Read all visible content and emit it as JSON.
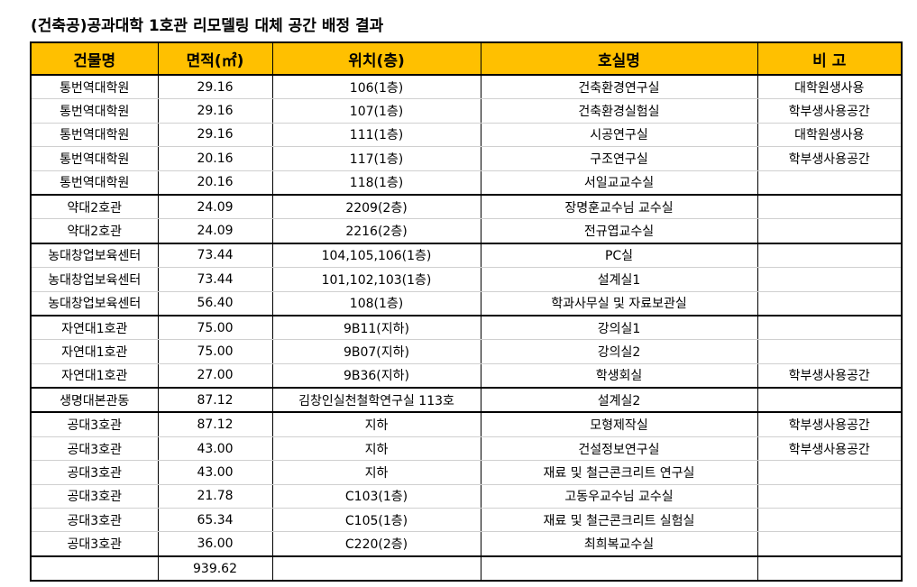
{
  "title": "(건축공)공과대학 1호관 리모델링 대체 공간 배정 결과",
  "headers": [
    "건물명",
    "면적(㎡)",
    "위치(층)",
    "호실명",
    "비  고"
  ],
  "rows": [
    {
      "building": "통번역대학원",
      "area": "29.16",
      "location": "106(1층)",
      "room": "건축환경연구실",
      "note": "대학원생사용"
    },
    {
      "building": "통번역대학원",
      "area": "29.16",
      "location": "107(1층)",
      "room": "건축환경실험실",
      "note": "학부생사용공간"
    },
    {
      "building": "통번역대학원",
      "area": "29.16",
      "location": "111(1층)",
      "room": "시공연구실",
      "note": "대학원생사용"
    },
    {
      "building": "통번역대학원",
      "area": "20.16",
      "location": "117(1층)",
      "room": "구조연구실",
      "note": "학부생사용공간"
    },
    {
      "building": "통번역대학원",
      "area": "20.16",
      "location": "118(1층)",
      "room": "서일교교수실",
      "note": ""
    },
    {
      "building": "약대2호관",
      "area": "24.09",
      "location": "2209(2층)",
      "room": "장명훈교수님 교수실",
      "note": ""
    },
    {
      "building": "약대2호관",
      "area": "24.09",
      "location": "2216(2층)",
      "room": "전규엽교수실",
      "note": ""
    },
    {
      "building": "농대창업보육센터",
      "area": "73.44",
      "location": "104,105,106(1층)",
      "room": "PC실",
      "note": ""
    },
    {
      "building": "농대창업보육센터",
      "area": "73.44",
      "location": "101,102,103(1층)",
      "room": "설계실1",
      "note": ""
    },
    {
      "building": "농대창업보육센터",
      "area": "56.40",
      "location": "108(1층)",
      "room": "학과사무실 및 자료보관실",
      "note": ""
    },
    {
      "building": "자연대1호관",
      "area": "75.00",
      "location": "9B11(지하)",
      "room": "강의실1",
      "note": ""
    },
    {
      "building": "자연대1호관",
      "area": "75.00",
      "location": "9B07(지하)",
      "room": "강의실2",
      "note": ""
    },
    {
      "building": "자연대1호관",
      "area": "27.00",
      "location": "9B36(지하)",
      "room": "학생회실",
      "note": "학부생사용공간"
    },
    {
      "building": "생명대본관동",
      "area": "87.12",
      "location": "김창인실천철학연구실 113호",
      "room": "설계실2",
      "note": ""
    },
    {
      "building": "공대3호관",
      "area": "87.12",
      "location": "지하",
      "room": "모형제작실",
      "note": "학부생사용공간"
    },
    {
      "building": "공대3호관",
      "area": "43.00",
      "location": "지하",
      "room": "건설정보연구실",
      "note": "학부생사용공간"
    },
    {
      "building": "공대3호관",
      "area": "43.00",
      "location": "지하",
      "room": "재료 및 철근콘크리트 연구실",
      "note": ""
    },
    {
      "building": "공대3호관",
      "area": "21.78",
      "location": "C103(1층)",
      "room": "고동우교수님 교수실",
      "note": ""
    },
    {
      "building": "공대3호관",
      "area": "65.34",
      "location": "C105(1층)",
      "room": "재료 및 철근콘크리트 실험실",
      "note": ""
    },
    {
      "building": "공대3호관",
      "area": "36.00",
      "location": "C220(2층)",
      "room": "최희복교수실",
      "note": ""
    },
    {
      "building": "",
      "area": "939.62",
      "location": "",
      "room": "",
      "note": ""
    }
  ],
  "colors": {
    "header_bg": "#ffc000"
  }
}
